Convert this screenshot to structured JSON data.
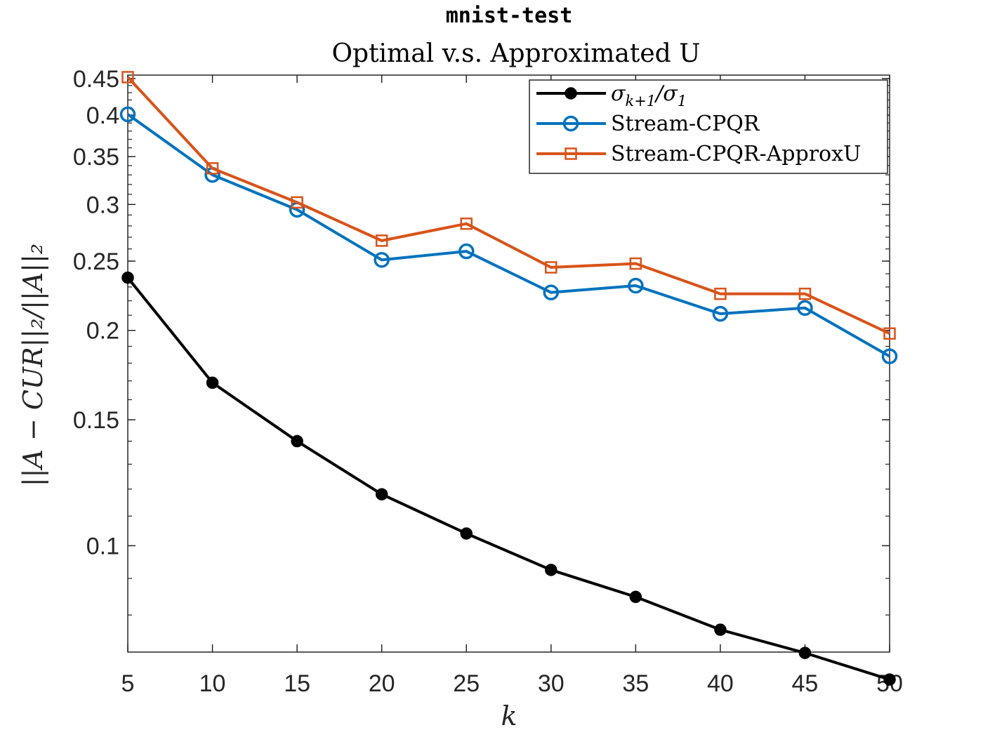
{
  "chart_data": {
    "type": "line",
    "title": "mnist-test",
    "subtitle": "Optimal v.s. Approximated U",
    "xlabel": "k",
    "ylabel": "||A − CUR||₂/||A||₂",
    "yscale": "log",
    "xlim": [
      5,
      50
    ],
    "ylim": [
      0.071,
      0.455
    ],
    "grid": false,
    "legend_position": "top-right",
    "x": [
      5,
      10,
      15,
      20,
      25,
      30,
      35,
      40,
      45,
      50
    ],
    "xticks": [
      "5",
      "10",
      "15",
      "20",
      "25",
      "30",
      "35",
      "40",
      "45",
      "50"
    ],
    "yticks": [
      {
        "value": 0.1,
        "label": "0.1"
      },
      {
        "value": 0.15,
        "label": "0.15"
      },
      {
        "value": 0.2,
        "label": "0.2"
      },
      {
        "value": 0.25,
        "label": "0.25"
      },
      {
        "value": 0.3,
        "label": "0.3"
      },
      {
        "value": 0.35,
        "label": "0.35"
      },
      {
        "value": 0.4,
        "label": "0.4"
      },
      {
        "value": 0.45,
        "label": "0.45"
      }
    ],
    "series": [
      {
        "name": "σ_{k+1}/σ_1",
        "color": "#000000",
        "marker": "filled-circle",
        "values": [
          0.237,
          0.169,
          0.14,
          0.118,
          0.104,
          0.0925,
          0.0848,
          0.0763,
          0.0708,
          0.065
        ]
      },
      {
        "name": "Stream-CPQR",
        "color": "#0072BD",
        "marker": "open-circle",
        "values": [
          0.401,
          0.33,
          0.295,
          0.251,
          0.258,
          0.226,
          0.231,
          0.211,
          0.215,
          0.184
        ]
      },
      {
        "name": "Stream-CPQR-ApproxU",
        "color": "#D95319",
        "marker": "open-square",
        "values": [
          0.452,
          0.337,
          0.302,
          0.267,
          0.282,
          0.245,
          0.248,
          0.225,
          0.225,
          0.198
        ]
      }
    ]
  }
}
